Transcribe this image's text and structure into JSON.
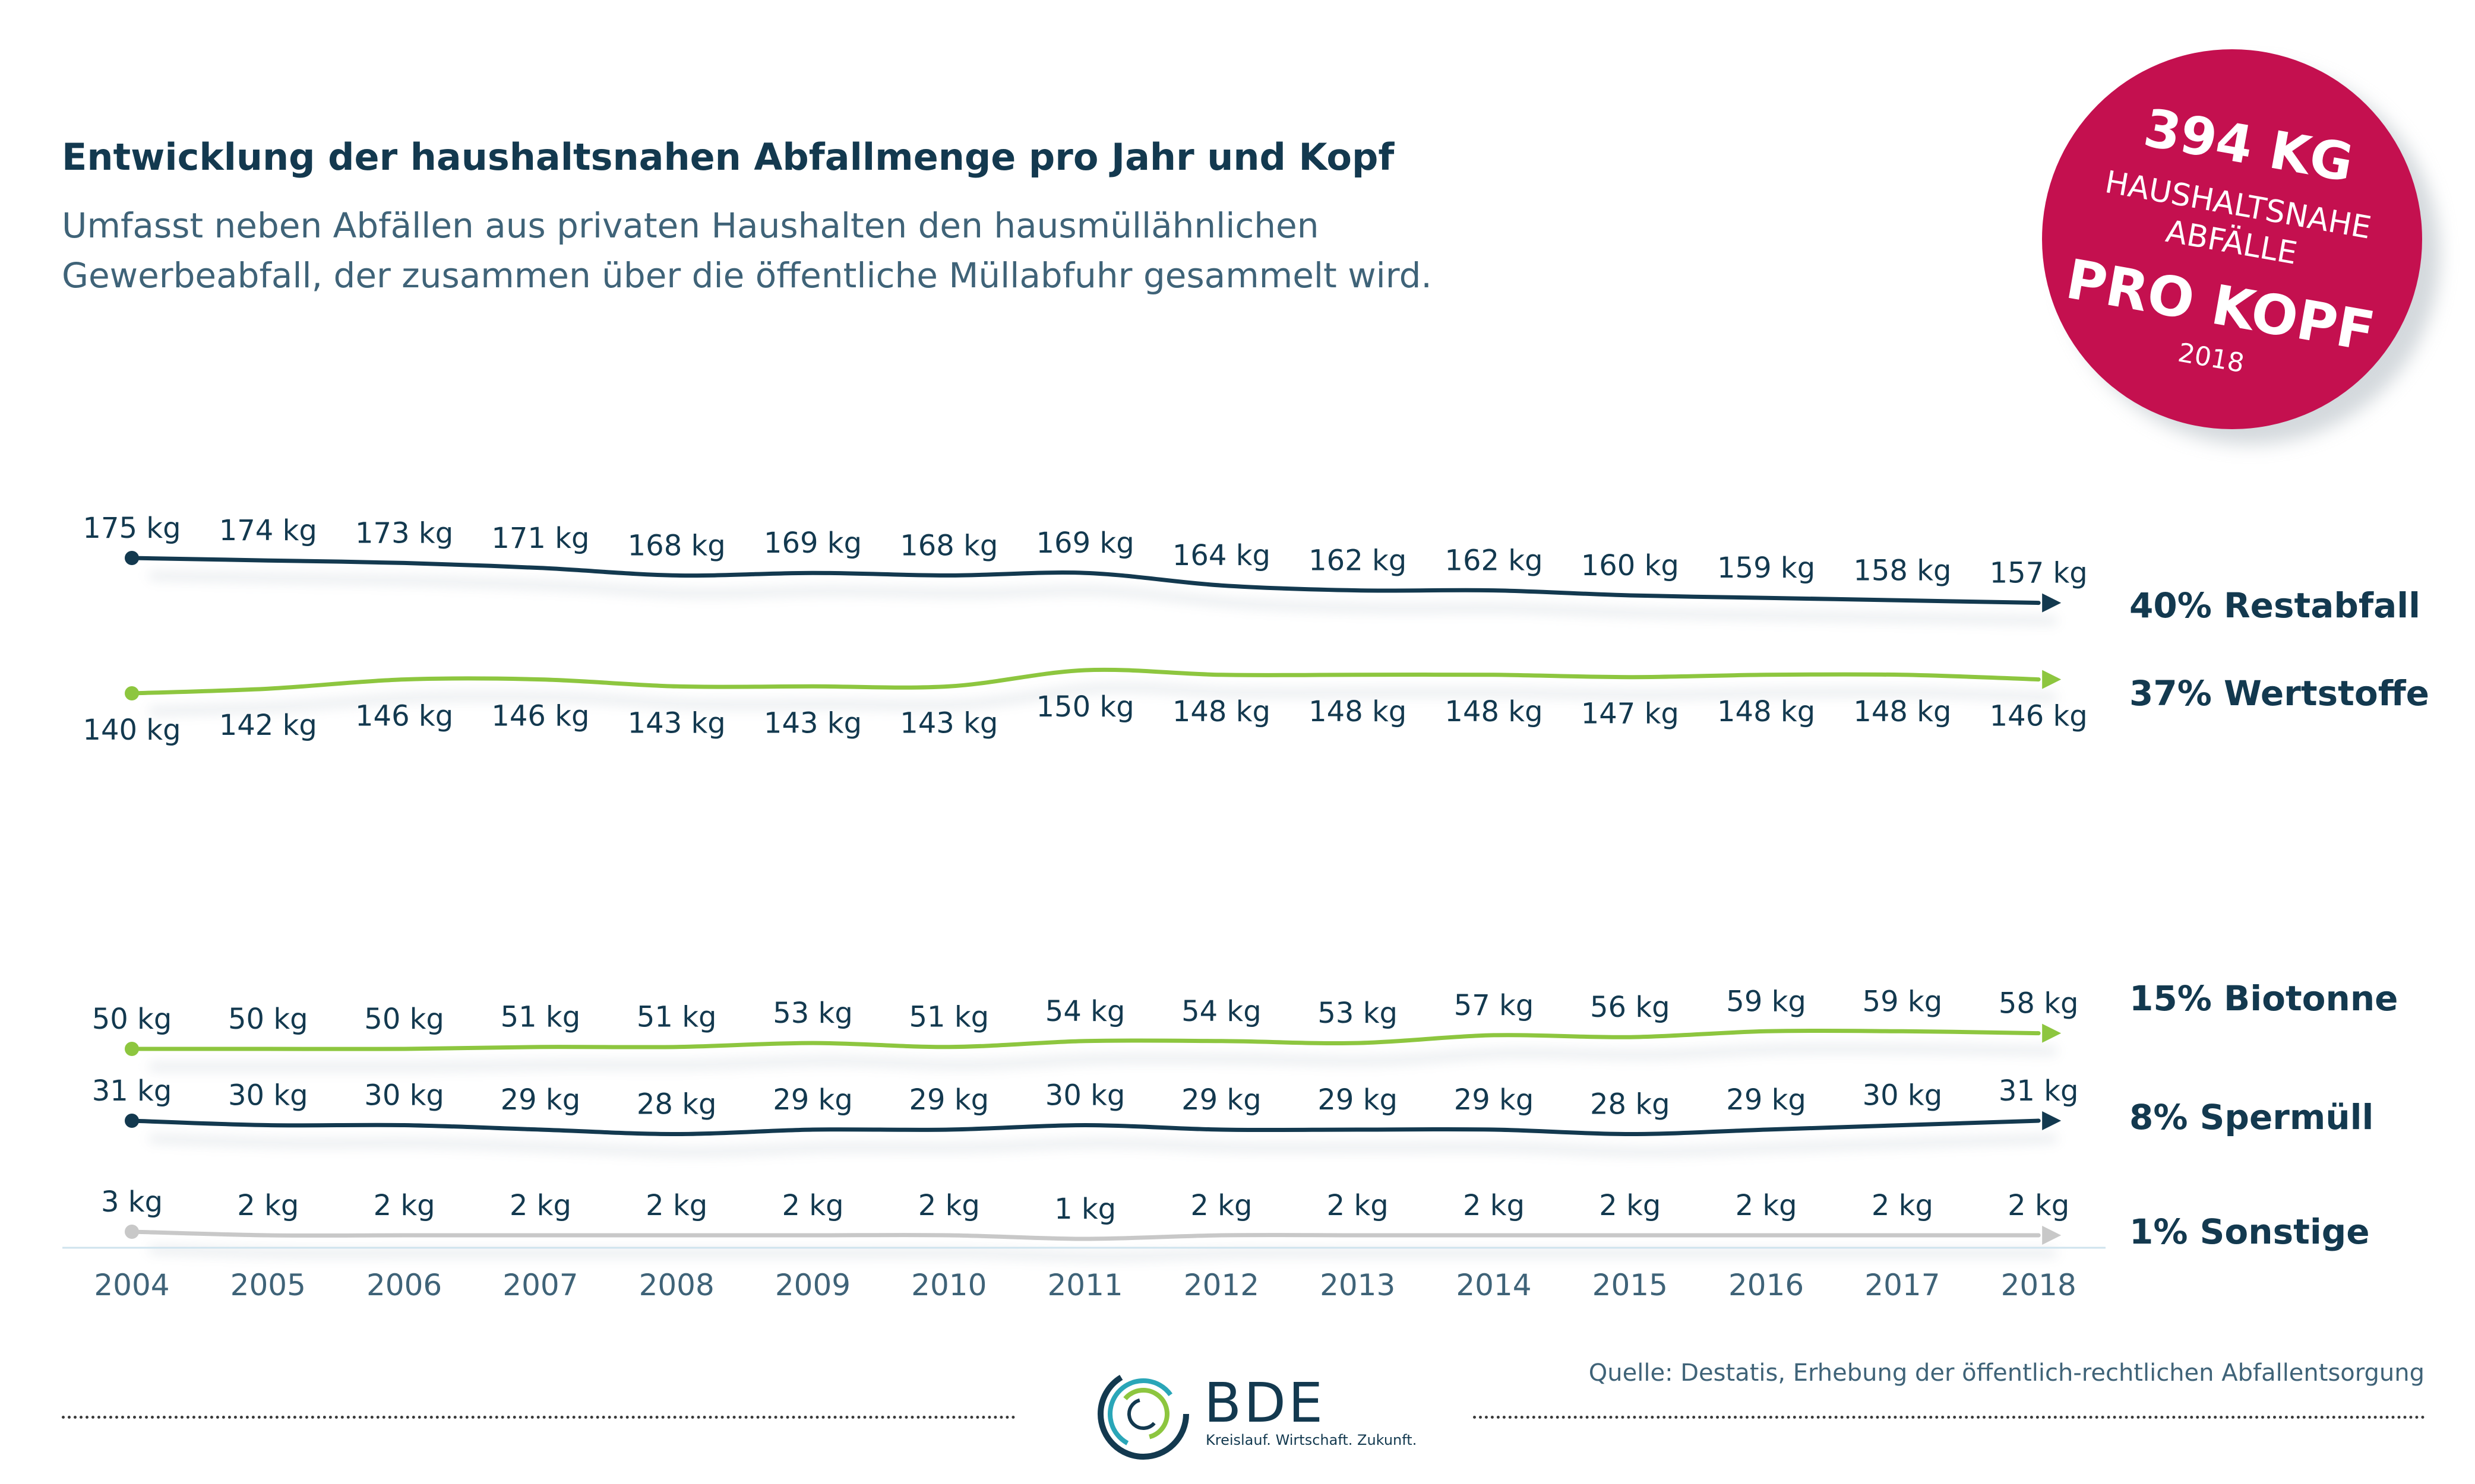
{
  "header": {
    "title": "Entwicklung der haushaltsnahen Abfallmenge pro Jahr und Kopf",
    "subtitle_line1": "Umfasst neben Abfällen aus privaten Haushalten den hausmüllähnlichen",
    "subtitle_line2": "Gewerbeabfall, der zusammen über die öffentliche Müllabfuhr gesammelt wird."
  },
  "badge": {
    "amount": "394 KG",
    "line1": "HAUSHALTSNAHE",
    "line2": "ABFÄLLE",
    "per": "PRO KOPF",
    "year": "2018",
    "color": "#c4104f"
  },
  "chart_data": {
    "type": "line",
    "x": [
      "2004",
      "2005",
      "2006",
      "2007",
      "2008",
      "2009",
      "2010",
      "2011",
      "2012",
      "2013",
      "2014",
      "2015",
      "2016",
      "2017",
      "2018"
    ],
    "series": [
      {
        "name": "40% Restabfall",
        "color": "#13394f",
        "values": [
          175,
          174,
          173,
          171,
          168,
          169,
          168,
          169,
          164,
          162,
          162,
          160,
          159,
          158,
          157
        ]
      },
      {
        "name": "37% Wertstoffe",
        "color": "#8dc63f",
        "values": [
          140,
          142,
          146,
          146,
          143,
          143,
          143,
          150,
          148,
          148,
          148,
          147,
          148,
          148,
          146
        ]
      },
      {
        "name": "15% Biotonne",
        "color": "#8dc63f",
        "values": [
          50,
          50,
          50,
          51,
          51,
          53,
          51,
          54,
          54,
          53,
          57,
          56,
          59,
          59,
          58
        ]
      },
      {
        "name": "8% Spermüll",
        "color": "#13394f",
        "values": [
          31,
          30,
          30,
          29,
          28,
          29,
          29,
          30,
          29,
          29,
          29,
          28,
          29,
          30,
          31
        ]
      },
      {
        "name": "1% Sonstige",
        "color": "#c8c8c8",
        "values": [
          3,
          2,
          2,
          2,
          2,
          2,
          2,
          1,
          2,
          2,
          2,
          2,
          2,
          2,
          2
        ]
      }
    ],
    "unit_suffix": " kg",
    "label_positions": [
      "above",
      "below",
      "above",
      "above",
      "above"
    ]
  },
  "footer": {
    "source": "Quelle: Destatis, Erhebung der öffentlich-rechtlichen Abfallentsorgung",
    "logo_text": "BDE",
    "logo_tagline": "Kreislauf. Wirtschaft. Zukunft."
  }
}
